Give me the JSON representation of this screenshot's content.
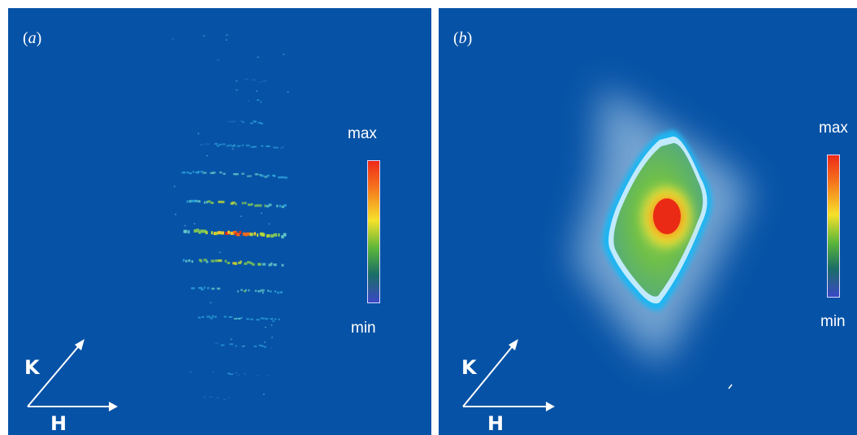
{
  "panel_a": {
    "label_open": "(",
    "label_letter": "a",
    "label_close": ")",
    "colorbar_max": "max",
    "colorbar_min": "min",
    "axis_k": "K",
    "axis_h": "H"
  },
  "panel_b": {
    "label_open": "(",
    "label_letter": "b",
    "label_close": ")",
    "colorbar_max": "max",
    "colorbar_min": "min",
    "axis_k": "K",
    "axis_h": "H"
  },
  "colors": {
    "background": "#0652a6",
    "colormap": [
      "#3a48c6",
      "#1a6e66",
      "#5ab53a",
      "#f6e12a",
      "#f5711c",
      "#ee2a1a"
    ]
  }
}
